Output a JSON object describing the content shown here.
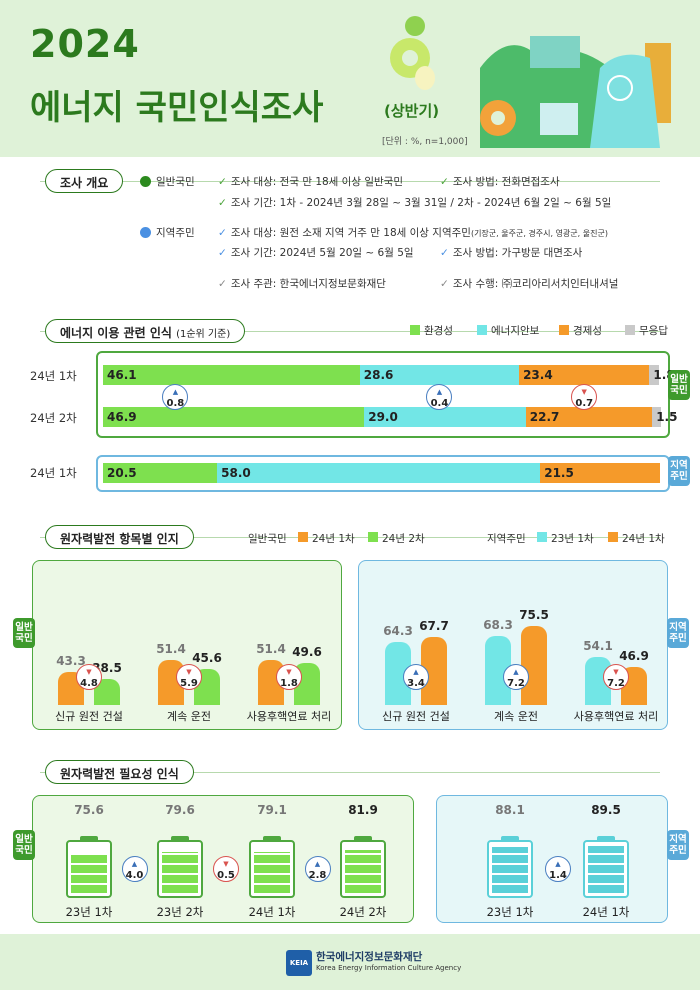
{
  "header": {
    "year": "2024",
    "title": "에너지 국민인식조사",
    "subtitle": "(상반기)",
    "unit": "[단위 : %, n=1,000]"
  },
  "overview": {
    "label": "조사 개요",
    "general_group": "일반국민",
    "general_target": "조사 대상: 전국 만 18세 이상 일반국민",
    "general_method": "조사 방법: 전화면접조사",
    "general_period": "조사 기간: 1차 - 2024년 3월 28일 ~ 3월 31일 / 2차 - 2024년 6월 2일 ~ 6월 5일",
    "local_group": "지역주민",
    "local_target": "조사 대상: 원전 소재 지역 거주 만 18세 이상 지역주민",
    "local_target_note": "(기장군, 울주군, 경주시, 영광군, 울진군)",
    "local_period": "조사 기간: 2024년 5월 20일 ~ 6월 5일",
    "local_method": "조사 방법: 가구방문 대면조사",
    "organizer": "조사 주관: 한국에너지정보문화재단",
    "performer": "조사 수행: ㈜코리아리서치인터내셔널"
  },
  "colors": {
    "green": "#7ee04f",
    "cyan": "#72e6e6",
    "orange": "#f59a2a",
    "gray": "#c9c9c9",
    "dark_green": "#2c7a1e",
    "blue": "#5aa9d8"
  },
  "section1": {
    "label": "에너지 이용 관련 인식",
    "label_note": "(1순위 기준)",
    "legend": [
      "환경성",
      "에너지안보",
      "경제성",
      "무응답"
    ],
    "row_labels": [
      "24년 1차",
      "24년 2차",
      "24년 1차"
    ],
    "general_tab": "일반국민",
    "local_tab": "지역주민",
    "changes": [
      {
        "value": "0.8",
        "dir": "up"
      },
      {
        "value": "0.4",
        "dir": "up"
      },
      {
        "value": "0.7",
        "dir": "down"
      }
    ]
  },
  "section2": {
    "label": "원자력발전 항목별 인지",
    "legend_general": "일반국민",
    "legend_general_s1": "24년 1차",
    "legend_general_s2": "24년 2차",
    "legend_local": "지역주민",
    "legend_local_s1": "23년 1차",
    "legend_local_s2": "24년 1차",
    "general_tab": "일반국민",
    "local_tab": "지역주민",
    "general_changes": [
      {
        "value": "4.8",
        "dir": "down"
      },
      {
        "value": "5.9",
        "dir": "down"
      },
      {
        "value": "1.8",
        "dir": "down"
      }
    ],
    "local_changes": [
      {
        "value": "3.4",
        "dir": "up"
      },
      {
        "value": "7.2",
        "dir": "up"
      },
      {
        "value": "7.2",
        "dir": "down"
      }
    ]
  },
  "section3": {
    "label": "원자력발전 필요성 인식",
    "general_tab": "일반국민",
    "local_tab": "지역주민",
    "general_changes": [
      {
        "value": "4.0",
        "dir": "up"
      },
      {
        "value": "0.5",
        "dir": "down"
      },
      {
        "value": "2.8",
        "dir": "up"
      }
    ],
    "local_changes": [
      {
        "value": "1.4",
        "dir": "up"
      }
    ]
  },
  "footer": {
    "logo_text": "KEIA",
    "org_name": "한국에너지정보문화재단",
    "org_name_en": "Korea Energy Information Culture Agency"
  },
  "chart_data": [
    {
      "type": "bar",
      "title": "에너지 이용 관련 인식",
      "stacked": true,
      "orientation": "horizontal",
      "categories": [
        "일반국민 24년 1차",
        "일반국민 24년 2차",
        "지역주민 24년 1차"
      ],
      "series": [
        {
          "name": "환경성",
          "values": [
            46.1,
            46.9,
            20.5
          ]
        },
        {
          "name": "에너지안보",
          "values": [
            28.6,
            29.0,
            58.0
          ]
        },
        {
          "name": "경제성",
          "values": [
            23.4,
            22.7,
            21.5
          ]
        },
        {
          "name": "무응답",
          "values": [
            1.8,
            1.5,
            0
          ]
        }
      ]
    },
    {
      "type": "bar",
      "title": "원자력발전 항목별 인지 - 일반국민",
      "categories": [
        "신규 원전 건설",
        "계속 운전",
        "사용후핵연료 처리"
      ],
      "series": [
        {
          "name": "24년 1차",
          "values": [
            43.3,
            51.4,
            51.4
          ]
        },
        {
          "name": "24년 2차",
          "values": [
            38.5,
            45.6,
            49.6
          ]
        }
      ],
      "ylim": [
        0,
        100
      ]
    },
    {
      "type": "bar",
      "title": "원자력발전 항목별 인지 - 지역주민",
      "categories": [
        "신규 원전 건설",
        "계속 운전",
        "사용후핵연료 처리"
      ],
      "series": [
        {
          "name": "23년 1차",
          "values": [
            64.3,
            68.3,
            54.1
          ]
        },
        {
          "name": "24년 1차",
          "values": [
            67.7,
            75.5,
            46.9
          ]
        }
      ],
      "ylim": [
        0,
        100
      ]
    },
    {
      "type": "bar",
      "title": "원자력발전 필요성 인식 - 일반국민",
      "categories": [
        "23년 1차",
        "23년 2차",
        "24년 1차",
        "24년 2차"
      ],
      "values": [
        75.6,
        79.6,
        79.1,
        81.9
      ]
    },
    {
      "type": "bar",
      "title": "원자력발전 필요성 인식 - 지역주민",
      "categories": [
        "23년 1차",
        "24년 1차"
      ],
      "values": [
        88.1,
        89.5
      ]
    }
  ]
}
